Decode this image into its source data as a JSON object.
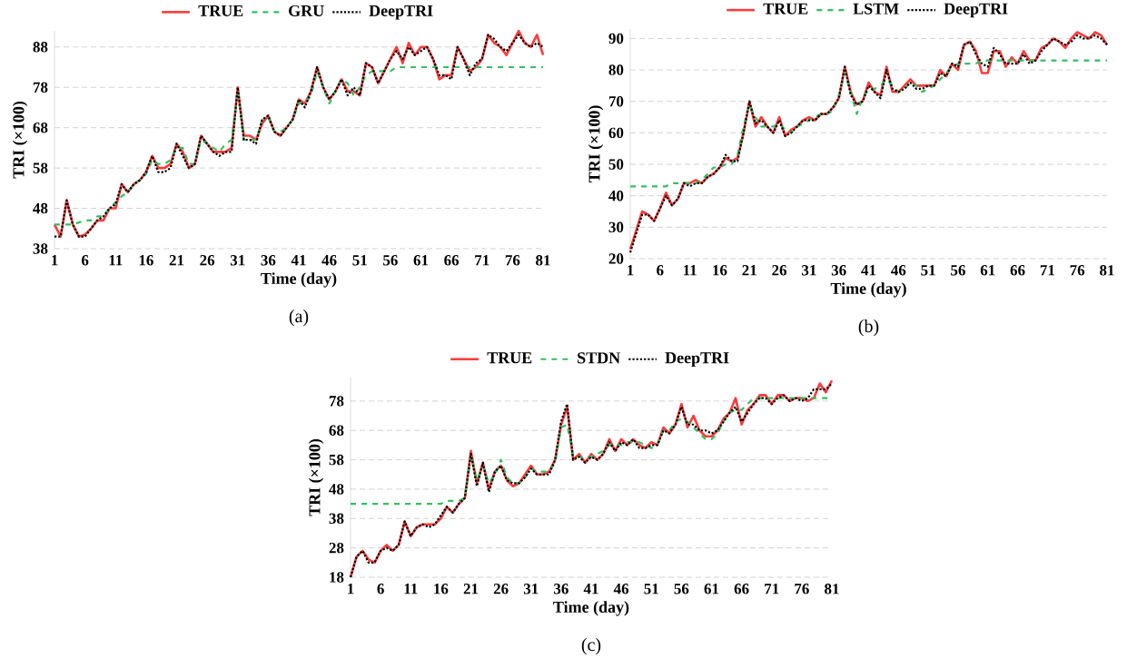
{
  "chart_data": [
    {
      "type": "line",
      "xlabel": "Time (day)",
      "ylabel": "TRI (×100)",
      "annotations": [
        "(a)"
      ],
      "legend": "top",
      "grid": "y",
      "x": [
        1,
        2,
        3,
        4,
        5,
        6,
        7,
        8,
        9,
        10,
        11,
        12,
        13,
        14,
        15,
        16,
        17,
        18,
        19,
        20,
        21,
        22,
        23,
        24,
        25,
        26,
        27,
        28,
        29,
        30,
        31,
        32,
        33,
        34,
        35,
        36,
        37,
        38,
        39,
        40,
        41,
        42,
        43,
        44,
        45,
        46,
        47,
        48,
        49,
        50,
        51,
        52,
        53,
        54,
        55,
        56,
        57,
        58,
        59,
        60,
        61,
        62,
        63,
        64,
        65,
        66,
        67,
        68,
        69,
        70,
        71,
        72,
        73,
        74,
        75,
        76,
        77,
        78,
        79,
        80,
        81
      ],
      "xlim": [
        1,
        81
      ],
      "xticks": [
        1,
        6,
        11,
        16,
        21,
        26,
        31,
        36,
        41,
        46,
        51,
        56,
        61,
        66,
        71,
        76,
        81
      ],
      "ylim": [
        38,
        92
      ],
      "yticks": [
        38,
        48,
        58,
        68,
        78,
        88
      ],
      "series": [
        {
          "name": "TRUE",
          "color": "#ff3b3b",
          "line_style": "solid",
          "values": [
            44,
            41,
            50,
            44,
            41,
            41.5,
            43,
            45,
            45,
            48,
            48,
            54,
            52,
            54,
            55,
            57,
            61,
            58,
            58,
            59,
            64,
            62,
            58,
            59,
            66,
            64,
            62,
            62,
            62,
            63,
            78,
            66,
            66,
            65,
            69,
            71,
            67,
            66,
            68,
            70,
            75,
            74,
            77,
            83,
            78,
            75,
            77,
            80,
            77,
            77,
            76,
            84,
            83,
            79,
            82,
            85,
            88,
            84,
            89,
            86,
            88,
            88,
            85,
            80,
            81,
            81,
            88,
            85,
            82,
            83,
            85,
            91,
            89,
            88,
            86,
            89,
            92,
            89,
            88,
            91,
            86
          ]
        },
        {
          "name": "GRU",
          "color": "#33c060",
          "line_style": "dashed",
          "values": [
            44,
            44,
            44,
            44,
            44.5,
            45,
            45,
            46,
            46,
            48,
            49.5,
            51,
            52,
            54,
            55,
            56.5,
            60,
            59,
            59,
            60,
            63,
            63,
            59,
            59,
            65,
            64,
            63,
            62,
            64,
            65,
            77,
            65,
            65,
            65,
            70,
            70.5,
            67,
            67,
            68,
            70,
            74,
            74,
            76,
            82,
            78,
            74,
            77,
            80,
            79,
            76,
            78,
            81,
            82,
            82,
            82,
            82,
            83,
            83,
            83,
            83,
            83,
            83,
            83,
            83,
            83,
            83,
            83,
            83,
            83,
            83,
            83,
            83,
            83,
            83,
            83,
            83,
            83,
            83,
            83,
            83,
            83
          ]
        },
        {
          "name": "DeepTRI",
          "color": "#000000",
          "line_style": "dotted",
          "values": [
            41,
            41,
            50,
            44,
            41,
            41,
            43,
            45,
            46,
            48,
            49,
            54,
            52,
            54,
            55,
            57,
            61,
            57,
            57,
            58,
            64,
            61,
            58,
            59,
            66,
            64,
            62,
            61,
            62,
            62,
            78,
            65,
            65,
            64,
            70,
            71,
            67,
            66,
            68,
            70,
            75,
            73,
            77,
            83,
            78,
            75,
            77,
            80,
            76,
            78,
            76,
            84,
            83,
            79,
            82,
            85,
            87,
            85,
            88,
            86,
            87,
            88,
            85,
            81,
            81,
            80,
            88,
            85,
            81,
            84,
            85,
            91,
            90,
            88,
            87,
            89,
            91,
            89,
            88,
            89,
            88
          ]
        }
      ]
    },
    {
      "type": "line",
      "xlabel": "Time (day)",
      "ylabel": "TRI (×100)",
      "annotations": [
        "(b)"
      ],
      "legend": "top",
      "grid": "y",
      "x": [
        1,
        2,
        3,
        4,
        5,
        6,
        7,
        8,
        9,
        10,
        11,
        12,
        13,
        14,
        15,
        16,
        17,
        18,
        19,
        20,
        21,
        22,
        23,
        24,
        25,
        26,
        27,
        28,
        29,
        30,
        31,
        32,
        33,
        34,
        35,
        36,
        37,
        38,
        39,
        40,
        41,
        42,
        43,
        44,
        45,
        46,
        47,
        48,
        49,
        50,
        51,
        52,
        53,
        54,
        55,
        56,
        57,
        58,
        59,
        60,
        61,
        62,
        63,
        64,
        65,
        66,
        67,
        68,
        69,
        70,
        71,
        72,
        73,
        74,
        75,
        76,
        77,
        78,
        79,
        80,
        81
      ],
      "xlim": [
        1,
        81
      ],
      "xticks": [
        1,
        6,
        11,
        16,
        21,
        26,
        31,
        36,
        41,
        46,
        51,
        56,
        61,
        66,
        71,
        76,
        81
      ],
      "ylim": [
        20,
        93
      ],
      "yticks": [
        20,
        30,
        40,
        50,
        60,
        70,
        80,
        90
      ],
      "series": [
        {
          "name": "TRUE",
          "color": "#ff3b3b",
          "line_style": "solid",
          "values": [
            23,
            29,
            35,
            34,
            32,
            36,
            41,
            37,
            39,
            44,
            44,
            45,
            44,
            46,
            47,
            49,
            52,
            51,
            52,
            60,
            70,
            62,
            65,
            62,
            60,
            65,
            59,
            61,
            62,
            64,
            65,
            64,
            66,
            66,
            68,
            71,
            81,
            73,
            69,
            70,
            76,
            73,
            72,
            81,
            73,
            73,
            75,
            77,
            75,
            75,
            75,
            75,
            80,
            78,
            82,
            80,
            88,
            89,
            86,
            79,
            79,
            86,
            86,
            81,
            84,
            82,
            86,
            83,
            83,
            87,
            88,
            90,
            89,
            87,
            90,
            92,
            91,
            90,
            92,
            91,
            88
          ]
        },
        {
          "name": "LSTM",
          "color": "#33c060",
          "line_style": "dashed",
          "values": [
            43,
            43,
            43,
            43,
            43,
            43,
            43,
            44,
            44,
            44,
            44,
            44,
            45,
            47,
            49,
            49,
            50,
            50,
            53,
            62,
            69,
            65,
            62,
            62,
            62,
            63,
            61,
            60,
            62,
            63,
            64,
            65,
            66,
            66,
            67,
            72,
            79,
            73,
            66,
            71,
            74,
            74,
            75,
            77,
            75,
            73,
            74,
            76,
            75,
            73,
            74,
            75,
            77,
            79,
            81,
            82,
            82,
            82,
            82,
            83,
            83,
            83,
            83,
            83,
            83,
            83,
            83,
            83,
            83,
            83,
            83,
            83,
            83,
            83,
            83,
            83,
            83,
            83,
            83,
            83,
            83
          ]
        },
        {
          "name": "DeepTRI",
          "color": "#000000",
          "line_style": "dotted",
          "values": [
            22,
            28,
            34,
            34,
            32,
            36,
            40,
            37,
            39,
            44,
            43,
            44,
            44,
            46,
            47,
            49,
            53,
            51,
            51,
            60,
            70,
            63,
            64,
            62,
            60,
            64,
            59,
            60,
            62,
            64,
            64,
            64,
            66,
            66,
            68,
            71,
            81,
            72,
            69,
            70,
            75,
            73,
            71,
            80,
            74,
            73,
            74,
            76,
            74,
            74,
            75,
            75,
            79,
            78,
            82,
            81,
            88,
            89,
            85,
            82,
            81,
            87,
            85,
            82,
            82,
            82,
            85,
            82,
            83,
            86,
            88,
            90,
            89,
            88,
            89,
            91,
            90,
            90,
            91,
            90,
            88
          ]
        }
      ]
    },
    {
      "type": "line",
      "xlabel": "Time (day)",
      "ylabel": "TRI (×100)",
      "annotations": [
        "(c)"
      ],
      "legend": "top",
      "grid": "y",
      "x": [
        1,
        2,
        3,
        4,
        5,
        6,
        7,
        8,
        9,
        10,
        11,
        12,
        13,
        14,
        15,
        16,
        17,
        18,
        19,
        20,
        21,
        22,
        23,
        24,
        25,
        26,
        27,
        28,
        29,
        30,
        31,
        32,
        33,
        34,
        35,
        36,
        37,
        38,
        39,
        40,
        41,
        42,
        43,
        44,
        45,
        46,
        47,
        48,
        49,
        50,
        51,
        52,
        53,
        54,
        55,
        56,
        57,
        58,
        59,
        60,
        61,
        62,
        63,
        64,
        65,
        66,
        67,
        68,
        69,
        70,
        71,
        72,
        73,
        74,
        75,
        76,
        77,
        78,
        79,
        80,
        81
      ],
      "xlim": [
        1,
        81
      ],
      "xticks": [
        1,
        6,
        11,
        16,
        21,
        26,
        31,
        36,
        41,
        46,
        51,
        56,
        61,
        66,
        71,
        76,
        81
      ],
      "ylim": [
        18,
        86
      ],
      "yticks": [
        18,
        28,
        38,
        48,
        58,
        68,
        78
      ],
      "series": [
        {
          "name": "TRUE",
          "color": "#ff3b3b",
          "line_style": "solid",
          "values": [
            18,
            25,
            27,
            24,
            23,
            27,
            29,
            27,
            29,
            37,
            32,
            35,
            36,
            36,
            36,
            38,
            42,
            40,
            43,
            45,
            61,
            50,
            57,
            48,
            54,
            56,
            51,
            49,
            50,
            53,
            56,
            53,
            53,
            54,
            58,
            70,
            76,
            58,
            60,
            57,
            60,
            58,
            60,
            65,
            61,
            65,
            63,
            65,
            63,
            62,
            64,
            63,
            69,
            67,
            70,
            77,
            69,
            73,
            68,
            66,
            66,
            68,
            72,
            74,
            79,
            70,
            75,
            77,
            80,
            80,
            77,
            80,
            80,
            78,
            79,
            79,
            78,
            79,
            84,
            81,
            85
          ]
        },
        {
          "name": "STDN",
          "color": "#33c060",
          "line_style": "dashed",
          "values": [
            43,
            43,
            43,
            43,
            43,
            43,
            43,
            43,
            43,
            43,
            43,
            43,
            43,
            43,
            43,
            43,
            44,
            44,
            44,
            45,
            59,
            51,
            56,
            50,
            53,
            58,
            52,
            50,
            50,
            52,
            55,
            54,
            54,
            54,
            57,
            69,
            70,
            59,
            59,
            59,
            59,
            60,
            61,
            63,
            63,
            63,
            64,
            64,
            64,
            63,
            62,
            63,
            68,
            68,
            71,
            72,
            71,
            69,
            67,
            65,
            65,
            67,
            71,
            74,
            75,
            75,
            77,
            79,
            79,
            79,
            79,
            79,
            79,
            79,
            79,
            79,
            79,
            79,
            79,
            79,
            79
          ]
        },
        {
          "name": "DeepTRI",
          "color": "#000000",
          "line_style": "dotted",
          "values": [
            18,
            25,
            27,
            23,
            23,
            27,
            28,
            27,
            29,
            37,
            32,
            35,
            36,
            35,
            36,
            39,
            42,
            40,
            43,
            45,
            60,
            49,
            57,
            47,
            54,
            56,
            51,
            50,
            50,
            52,
            55,
            53,
            53,
            53,
            58,
            71,
            77,
            58,
            59,
            57,
            59,
            58,
            60,
            64,
            61,
            64,
            63,
            65,
            62,
            62,
            63,
            63,
            68,
            67,
            70,
            76,
            70,
            70,
            68,
            68,
            67,
            68,
            71,
            74,
            76,
            71,
            74,
            77,
            79,
            79,
            77,
            79,
            80,
            78,
            79,
            78,
            79,
            82,
            82,
            82,
            84
          ]
        }
      ]
    }
  ]
}
